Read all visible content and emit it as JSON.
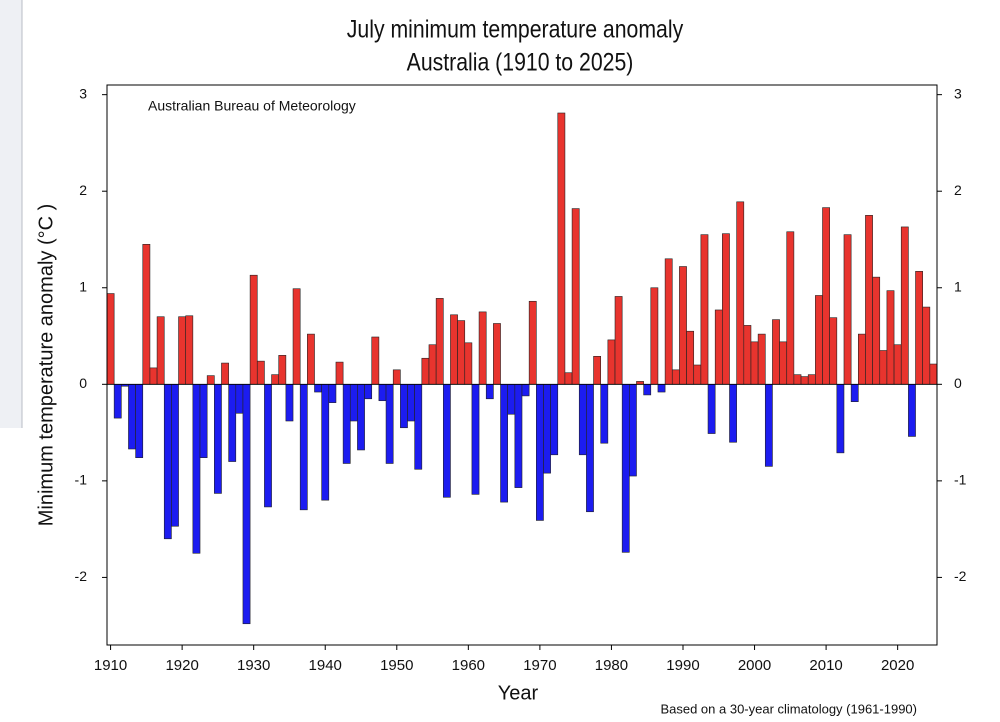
{
  "chart_data": {
    "type": "bar",
    "title": "July minimum temperature anomaly",
    "subtitle": "Australia (1910 to 2025)",
    "ylabel": "Minimum temperature anomaly (°C )",
    "xlabel": "Year",
    "annotation": "Australian Bureau of Meteorology",
    "footnote": "Based on a 30-year climatology (1961-1990)",
    "x": [
      1910,
      1911,
      1912,
      1913,
      1914,
      1915,
      1916,
      1917,
      1918,
      1919,
      1920,
      1921,
      1922,
      1923,
      1924,
      1925,
      1926,
      1927,
      1928,
      1929,
      1930,
      1931,
      1932,
      1933,
      1934,
      1935,
      1936,
      1937,
      1938,
      1939,
      1940,
      1941,
      1942,
      1943,
      1944,
      1945,
      1946,
      1947,
      1948,
      1949,
      1950,
      1951,
      1952,
      1953,
      1954,
      1955,
      1956,
      1957,
      1958,
      1959,
      1960,
      1961,
      1962,
      1963,
      1964,
      1965,
      1966,
      1967,
      1968,
      1969,
      1970,
      1971,
      1972,
      1973,
      1974,
      1975,
      1976,
      1977,
      1978,
      1979,
      1980,
      1981,
      1982,
      1983,
      1984,
      1985,
      1986,
      1987,
      1988,
      1989,
      1990,
      1991,
      1992,
      1993,
      1994,
      1995,
      1996,
      1997,
      1998,
      1999,
      2000,
      2001,
      2002,
      2003,
      2004,
      2005,
      2006,
      2007,
      2008,
      2009,
      2010,
      2011,
      2012,
      2013,
      2014,
      2015,
      2016,
      2017,
      2018,
      2019,
      2020,
      2021,
      2022,
      2023,
      2024,
      2025
    ],
    "values": [
      0.94,
      -0.35,
      -0.02,
      -0.67,
      -0.76,
      1.45,
      0.17,
      0.7,
      -1.6,
      -1.47,
      0.7,
      0.71,
      -1.75,
      -0.76,
      0.09,
      -1.13,
      0.22,
      -0.8,
      -0.3,
      -2.48,
      1.13,
      0.24,
      -1.27,
      0.1,
      0.3,
      -0.38,
      0.99,
      -1.3,
      0.52,
      -0.08,
      -1.2,
      -0.19,
      0.23,
      -0.82,
      -0.38,
      -0.68,
      -0.15,
      0.49,
      -0.17,
      -0.82,
      0.15,
      -0.45,
      -0.38,
      -0.88,
      0.27,
      0.41,
      0.89,
      -1.17,
      0.72,
      0.66,
      0.43,
      -1.14,
      0.75,
      -0.15,
      0.63,
      -1.22,
      -0.31,
      -1.07,
      -0.12,
      0.86,
      -1.41,
      -0.92,
      -0.73,
      2.81,
      0.12,
      1.82,
      -0.73,
      -1.32,
      0.29,
      -0.61,
      0.46,
      0.91,
      -1.74,
      -0.95,
      0.03,
      -0.11,
      1.0,
      -0.08,
      1.3,
      0.15,
      1.22,
      0.55,
      0.2,
      1.55,
      -0.51,
      0.77,
      1.56,
      -0.6,
      1.89,
      0.61,
      0.44,
      0.52,
      -0.85,
      0.67,
      0.44,
      1.58,
      0.1,
      0.08,
      0.1,
      0.92,
      1.83,
      0.69,
      -0.71,
      1.55,
      -0.18,
      0.52,
      1.75,
      1.11,
      0.35,
      0.97,
      0.41,
      1.63,
      -0.54,
      1.17,
      0.8,
      0.21
    ],
    "positive_color": "#e8342e",
    "negative_color": "#1c1cf0",
    "xlim": [
      1909.5,
      2025.5
    ],
    "xticks": [
      1910,
      1920,
      1930,
      1940,
      1950,
      1960,
      1970,
      1980,
      1990,
      2000,
      2010,
      2020
    ],
    "ylim": [
      -2.7,
      3.1
    ],
    "yticks": [
      -2,
      -1,
      0,
      1,
      2,
      3
    ],
    "y2lim": [
      -2.7,
      3.1
    ],
    "y2ticks": [
      -2,
      -1,
      0,
      1,
      2,
      3
    ]
  }
}
